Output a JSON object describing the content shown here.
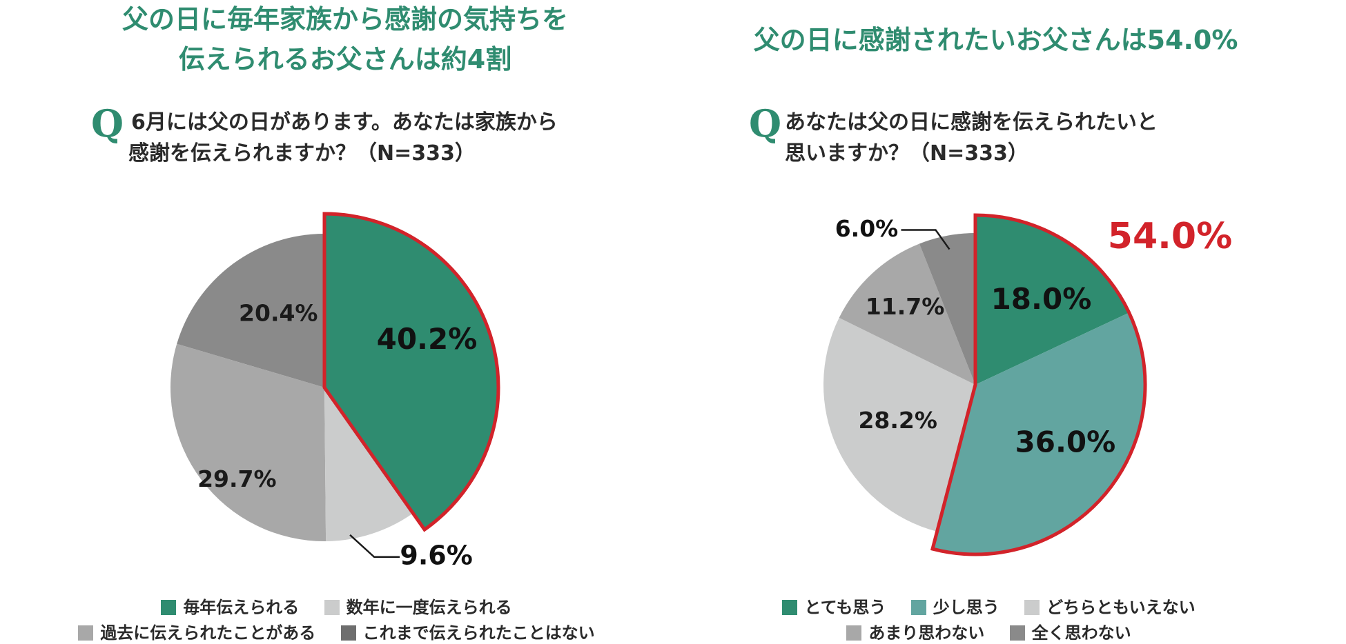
{
  "panels": [
    {
      "title_line1": "父の日に毎年家族から感謝の気持ちを",
      "title_line2": "伝えられるお父さんは約4割",
      "q_mark": "Q",
      "question_line1": "6月には父の日があります。あなたは家族から",
      "question_line2": "感謝を伝えられますか？（N=333）",
      "legend": [
        "毎年伝えられる",
        "数年に一度伝えられる",
        "過去に伝えられたことがある",
        "これまで伝えられたことはない"
      ]
    },
    {
      "title_line1": "父の日に感謝されたいお父さんは54.0%",
      "q_mark": "Q",
      "question_line1": "あなたは父の日に感謝を伝えられたいと",
      "question_line2": "思いますか？（N=333）",
      "legend": [
        "とても思う",
        "少し思う",
        "どちらともいえない",
        "あまり思わない",
        "全く思わない"
      ]
    }
  ],
  "colors": {
    "green": "#2f8c70",
    "teal": "#62a5a0",
    "light_gray": "#cbcccc",
    "mid_gray": "#a8a8a8",
    "dark_gray": "#8a8a8a",
    "highlight_red": "#d2232a"
  },
  "chart_data": [
    {
      "type": "pie",
      "title": "父の日に毎年家族から感謝の気持ちを伝えられるお父さんは約4割",
      "categories": [
        "毎年伝えられる",
        "数年に一度伝えられる",
        "過去に伝えられたことがある",
        "これまで伝えられたことはない"
      ],
      "values": [
        40.2,
        9.6,
        29.7,
        20.4
      ],
      "labels": [
        "40.2%",
        "9.6%",
        "29.7%",
        "20.4%"
      ],
      "highlighted": [
        "毎年伝えられる"
      ],
      "legend_position": "bottom"
    },
    {
      "type": "pie",
      "title": "父の日に感謝されたいお父さんは54.0%",
      "categories": [
        "とても思う",
        "少し思う",
        "どちらともいえない",
        "あまり思わない",
        "全く思わない"
      ],
      "values": [
        18.0,
        36.0,
        28.2,
        11.7,
        6.0
      ],
      "labels": [
        "18.0%",
        "36.0%",
        "28.2%",
        "11.7%",
        "6.0%"
      ],
      "highlighted": [
        "とても思う",
        "少し思う"
      ],
      "highlight_label": "54.0%",
      "legend_position": "bottom"
    }
  ]
}
